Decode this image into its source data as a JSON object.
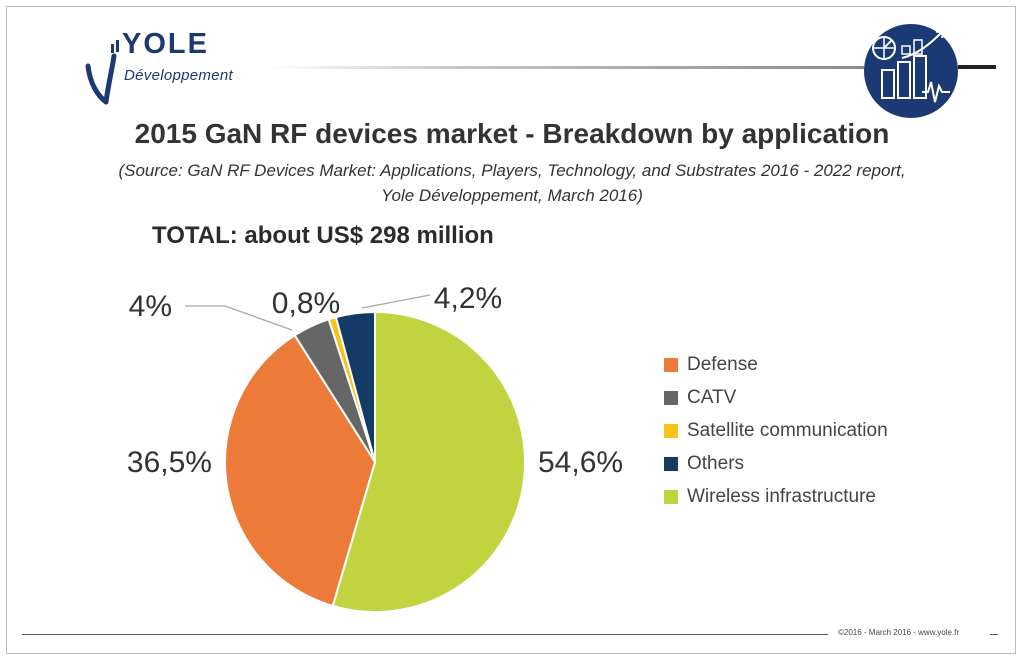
{
  "brand": {
    "name": "YOLE",
    "subname": "Développement"
  },
  "chart_data": {
    "type": "pie",
    "title": "2015 GaN RF devices market - Breakdown by application",
    "source_line1": "(Source: GaN RF Devices Market: Applications, Players, Technology, and Substrates 2016 - 2022 report,",
    "source_line2": "Yole Développement, March 2016)",
    "total": "TOTAL: about US$ 298 million",
    "slices": [
      {
        "label": "Wireless infrastructure",
        "value": 54.6,
        "display": "54,6%",
        "color": "#c1d43f"
      },
      {
        "label": "Defense",
        "value": 36.5,
        "display": "36,5%",
        "color": "#ec7a38"
      },
      {
        "label": "CATV",
        "value": 4.0,
        "display": "4%",
        "color": "#666666"
      },
      {
        "label": "Satellite communication",
        "value": 0.8,
        "display": "0,8%",
        "color": "#f6c319"
      },
      {
        "label": "Others",
        "value": 4.2,
        "display": "4,2%",
        "color": "#143b66"
      }
    ],
    "legend_order": [
      "Defense",
      "CATV",
      "Satellite communication",
      "Others",
      "Wireless infrastructure"
    ],
    "legend_position": "right"
  },
  "footer": {
    "copyright": "©2016 - March 2016 - www.yole.fr"
  }
}
